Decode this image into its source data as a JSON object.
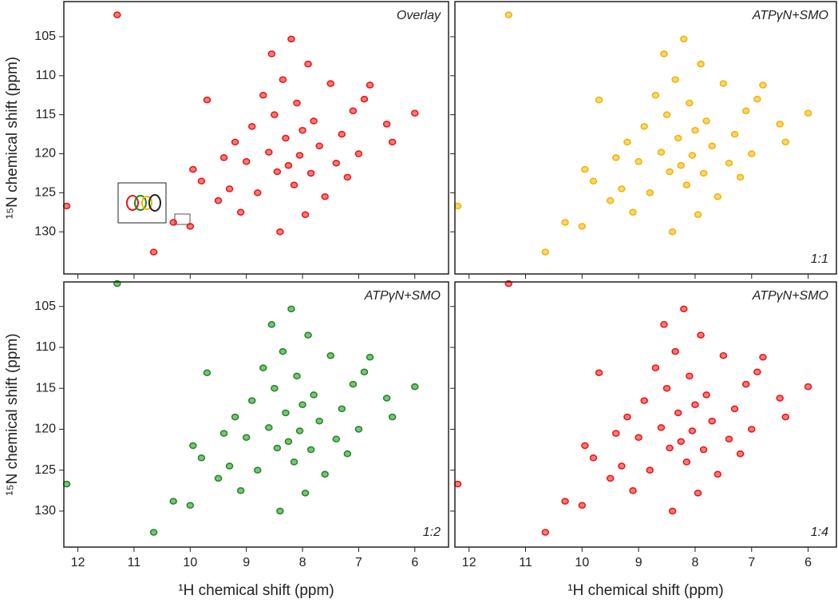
{
  "chart_data": [
    {
      "type": "scatter",
      "title": "Overlay",
      "y_label": "¹⁵N chemical shift (ppm)",
      "color": "#ee1111",
      "x": [
        12.2,
        11.3,
        10.65,
        10.3,
        10.0,
        9.95,
        9.8,
        9.7,
        9.5,
        9.4,
        9.3,
        9.2,
        9.1,
        9.0,
        8.9,
        8.8,
        8.7,
        8.6,
        8.55,
        8.5,
        8.45,
        8.4,
        8.35,
        8.3,
        8.25,
        8.2,
        8.15,
        8.1,
        8.05,
        8.0,
        7.95,
        7.9,
        7.85,
        7.8,
        7.7,
        7.6,
        7.5,
        7.4,
        7.3,
        7.2,
        7.1,
        7.0,
        6.9,
        6.8,
        6.5,
        6.4,
        6.0
      ],
      "values": [
        126.7,
        102.2,
        132.6,
        128.8,
        129.3,
        122.0,
        123.5,
        113.1,
        126.0,
        120.5,
        124.5,
        118.5,
        127.5,
        121.0,
        116.5,
        125.0,
        112.5,
        119.8,
        107.2,
        115.0,
        122.3,
        130.0,
        110.5,
        118.0,
        121.5,
        105.3,
        124.0,
        113.5,
        120.2,
        117.0,
        127.8,
        108.5,
        122.5,
        115.8,
        119.0,
        125.5,
        111.0,
        121.2,
        117.5,
        123.0,
        114.5,
        120.0,
        113.0,
        111.2,
        116.2,
        118.5,
        114.8
      ],
      "xlim": [
        12.25,
        5.4
      ],
      "ylim": [
        100.5,
        135.4
      ],
      "xticks": [
        12,
        11,
        10,
        9,
        8,
        7,
        6
      ],
      "yticks": [
        105,
        110,
        115,
        120,
        125,
        130
      ],
      "xtick_labels": false,
      "ytick_labels": true
    },
    {
      "type": "scatter",
      "title": "ATPγN+SMO",
      "annotation": "1:1",
      "color": "#f0b400",
      "x": [
        12.2,
        11.3,
        10.65,
        10.3,
        10.0,
        9.95,
        9.8,
        9.7,
        9.5,
        9.4,
        9.3,
        9.2,
        9.1,
        9.0,
        8.9,
        8.8,
        8.7,
        8.6,
        8.55,
        8.5,
        8.45,
        8.4,
        8.35,
        8.3,
        8.25,
        8.2,
        8.15,
        8.1,
        8.05,
        8.0,
        7.95,
        7.9,
        7.85,
        7.8,
        7.7,
        7.6,
        7.5,
        7.4,
        7.3,
        7.2,
        7.1,
        7.0,
        6.9,
        6.8,
        6.5,
        6.4,
        6.0
      ],
      "values": [
        126.7,
        102.2,
        132.6,
        128.8,
        129.3,
        122.0,
        123.5,
        113.1,
        126.0,
        120.5,
        124.5,
        118.5,
        127.5,
        121.0,
        116.5,
        125.0,
        112.5,
        119.8,
        107.2,
        115.0,
        122.3,
        130.0,
        110.5,
        118.0,
        121.5,
        105.3,
        124.0,
        113.5,
        120.2,
        117.0,
        127.8,
        108.5,
        122.5,
        115.8,
        119.0,
        125.5,
        111.0,
        121.2,
        117.5,
        123.0,
        114.5,
        120.0,
        113.0,
        111.2,
        116.2,
        118.5,
        114.8
      ],
      "xlim": [
        12.25,
        5.5
      ],
      "ylim": [
        100.5,
        135.4
      ],
      "xticks": [
        12,
        11,
        10,
        9,
        8,
        7,
        6
      ],
      "yticks": [
        105,
        110,
        115,
        120,
        125,
        130
      ],
      "xtick_labels": false,
      "ytick_labels": false
    },
    {
      "type": "scatter",
      "title": "ATPγN+SMO",
      "annotation": "1:2",
      "y_label": "¹⁵N chemical shift (ppm)",
      "x_label": "¹H chemical shift (ppm)",
      "color": "#1a8a1a",
      "x": [
        12.2,
        11.3,
        10.65,
        10.3,
        10.0,
        9.95,
        9.8,
        9.7,
        9.5,
        9.4,
        9.3,
        9.2,
        9.1,
        9.0,
        8.9,
        8.8,
        8.7,
        8.6,
        8.55,
        8.5,
        8.45,
        8.4,
        8.35,
        8.3,
        8.25,
        8.2,
        8.15,
        8.1,
        8.05,
        8.0,
        7.95,
        7.9,
        7.85,
        7.8,
        7.7,
        7.6,
        7.5,
        7.4,
        7.3,
        7.2,
        7.1,
        7.0,
        6.9,
        6.8,
        6.5,
        6.4,
        6.0
      ],
      "values": [
        126.7,
        102.2,
        132.6,
        128.8,
        129.3,
        122.0,
        123.5,
        113.1,
        126.0,
        120.5,
        124.5,
        118.5,
        127.5,
        121.0,
        116.5,
        125.0,
        112.5,
        119.8,
        107.2,
        115.0,
        122.3,
        130.0,
        110.5,
        118.0,
        121.5,
        105.3,
        124.0,
        113.5,
        120.2,
        117.0,
        127.8,
        108.5,
        122.5,
        115.8,
        119.0,
        125.5,
        111.0,
        121.2,
        117.5,
        123.0,
        114.5,
        120.0,
        113.0,
        111.2,
        116.2,
        118.5,
        114.8
      ],
      "xlim": [
        12.25,
        5.4
      ],
      "ylim": [
        102,
        134.4
      ],
      "xticks": [
        12,
        11,
        10,
        9,
        8,
        7,
        6
      ],
      "yticks": [
        105,
        110,
        115,
        120,
        125,
        130
      ],
      "xtick_labels": true,
      "ytick_labels": true
    },
    {
      "type": "scatter",
      "title": "ATPγN+SMO",
      "annotation": "1:4",
      "x_label": "¹H chemical shift (ppm)",
      "color": "#ee1111",
      "x": [
        12.2,
        11.3,
        10.65,
        10.3,
        10.0,
        9.95,
        9.8,
        9.7,
        9.5,
        9.4,
        9.3,
        9.2,
        9.1,
        9.0,
        8.9,
        8.8,
        8.7,
        8.6,
        8.55,
        8.5,
        8.45,
        8.4,
        8.35,
        8.3,
        8.25,
        8.2,
        8.15,
        8.1,
        8.05,
        8.0,
        7.95,
        7.9,
        7.85,
        7.8,
        7.7,
        7.6,
        7.5,
        7.4,
        7.3,
        7.2,
        7.1,
        7.0,
        6.9,
        6.8,
        6.5,
        6.4,
        6.0
      ],
      "values": [
        126.7,
        102.2,
        132.6,
        128.8,
        129.3,
        122.0,
        123.5,
        113.1,
        126.0,
        120.5,
        124.5,
        118.5,
        127.5,
        121.0,
        116.5,
        125.0,
        112.5,
        119.8,
        107.2,
        115.0,
        122.3,
        130.0,
        110.5,
        118.0,
        121.5,
        105.3,
        124.0,
        113.5,
        120.2,
        117.0,
        127.8,
        108.5,
        122.5,
        115.8,
        119.0,
        125.5,
        111.0,
        121.2,
        117.5,
        123.0,
        114.5,
        120.0,
        113.0,
        111.2,
        116.2,
        118.5,
        114.8
      ],
      "xlim": [
        12.25,
        5.5
      ],
      "ylim": [
        102,
        134.4
      ],
      "xticks": [
        12,
        11,
        10,
        9,
        8,
        7,
        6
      ],
      "yticks": [
        105,
        110,
        115,
        120,
        125,
        130
      ],
      "xtick_labels": true,
      "ytick_labels": false
    }
  ]
}
